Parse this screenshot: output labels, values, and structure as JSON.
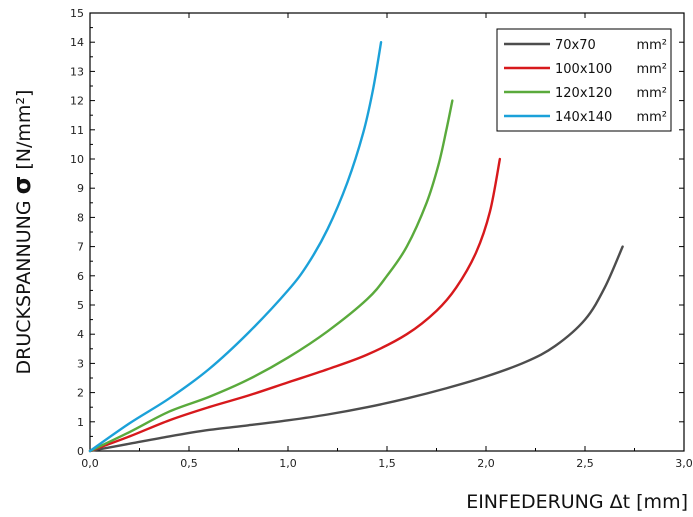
{
  "chart_data": {
    "type": "line",
    "xlabel": "EINFEDERUNG Δt [mm]",
    "ylabel_prefix": "DRUCKSPANNUNG ",
    "ylabel_symbol": "σ",
    "ylabel_suffix": " [N/mm²]",
    "xlim": [
      0,
      3.0
    ],
    "ylim": [
      0,
      15
    ],
    "x_ticks": [
      "0,0",
      "0,5",
      "1,0",
      "1,5",
      "2,0",
      "2,5",
      "3,0"
    ],
    "y_ticks": [
      "0",
      "1",
      "2",
      "3",
      "4",
      "5",
      "6",
      "7",
      "8",
      "9",
      "10",
      "11",
      "12",
      "13",
      "14",
      "15"
    ],
    "grid": false,
    "legend_position": "top-right",
    "series": [
      {
        "name": "70x70",
        "unit": "mm²",
        "color": "#4d4d4d",
        "x": [
          0,
          0.2,
          0.4,
          0.6,
          0.8,
          1.0,
          1.2,
          1.4,
          1.6,
          1.8,
          2.0,
          2.2,
          2.35,
          2.5,
          2.6,
          2.69
        ],
        "y": [
          0,
          0.25,
          0.5,
          0.72,
          0.88,
          1.05,
          1.25,
          1.5,
          1.8,
          2.15,
          2.55,
          3.05,
          3.6,
          4.5,
          5.6,
          7.0
        ]
      },
      {
        "name": "100x100",
        "unit": "mm²",
        "color": "#d7191c",
        "x": [
          0,
          0.2,
          0.4,
          0.6,
          0.8,
          1.0,
          1.2,
          1.4,
          1.6,
          1.75,
          1.85,
          1.95,
          2.02,
          2.07
        ],
        "y": [
          0,
          0.5,
          1.05,
          1.5,
          1.9,
          2.35,
          2.8,
          3.3,
          4.0,
          4.8,
          5.6,
          6.8,
          8.2,
          10.0
        ]
      },
      {
        "name": "120x120",
        "unit": "mm²",
        "color": "#5aaa3c",
        "x": [
          0,
          0.2,
          0.4,
          0.6,
          0.8,
          1.0,
          1.2,
          1.4,
          1.5,
          1.6,
          1.7,
          1.76,
          1.8,
          1.83
        ],
        "y": [
          0,
          0.65,
          1.35,
          1.85,
          2.45,
          3.2,
          4.1,
          5.2,
          6.0,
          7.0,
          8.5,
          9.8,
          11.0,
          12.0
        ]
      },
      {
        "name": "140x140",
        "unit": "mm²",
        "color": "#1ba1d9",
        "x": [
          0,
          0.2,
          0.4,
          0.6,
          0.8,
          1.0,
          1.1,
          1.2,
          1.3,
          1.38,
          1.43,
          1.47
        ],
        "y": [
          0,
          0.95,
          1.8,
          2.8,
          4.05,
          5.5,
          6.4,
          7.6,
          9.2,
          10.9,
          12.4,
          14.0
        ]
      }
    ]
  }
}
